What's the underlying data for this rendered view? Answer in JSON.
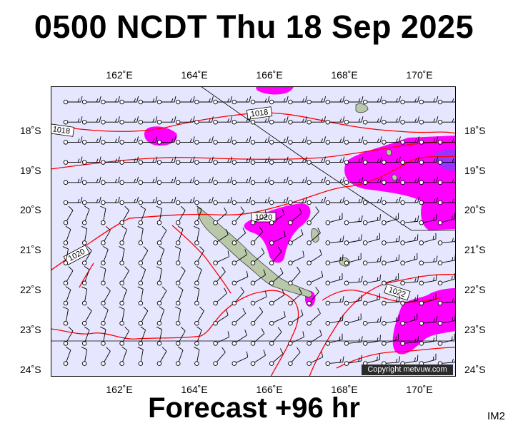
{
  "header": {
    "title": "0500 NCDT Thu 18 Sep 2025"
  },
  "footer": {
    "forecast": "Forecast +96 hr",
    "image_id": "IM2",
    "copyright": "Copyright metvuw.com"
  },
  "axes": {
    "longitudes": [
      {
        "value": 162,
        "label": "162˚E"
      },
      {
        "value": 164,
        "label": "164˚E"
      },
      {
        "value": 166,
        "label": "166˚E"
      },
      {
        "value": 168,
        "label": "168˚E"
      },
      {
        "value": 170,
        "label": "170˚E"
      }
    ],
    "latitudes": [
      {
        "value": -18,
        "label": "18˚S"
      },
      {
        "value": -19,
        "label": "19˚S"
      },
      {
        "value": -20,
        "label": "20˚S"
      },
      {
        "value": -21,
        "label": "21˚S"
      },
      {
        "value": -22,
        "label": "22˚S"
      },
      {
        "value": -23,
        "label": "23˚S"
      },
      {
        "value": -24,
        "label": "24˚S"
      }
    ]
  },
  "isobars": {
    "color": "#ff0000",
    "labels": [
      "1018",
      "1018",
      "1020",
      "1020",
      "1022"
    ]
  },
  "colors": {
    "ocean": "#e6e6ff",
    "rain_light": "#ff00ff",
    "rain_heavy": "#9933ff",
    "land": "#b8c8a8",
    "isobar": "#ff0000",
    "barb": "#000000"
  }
}
